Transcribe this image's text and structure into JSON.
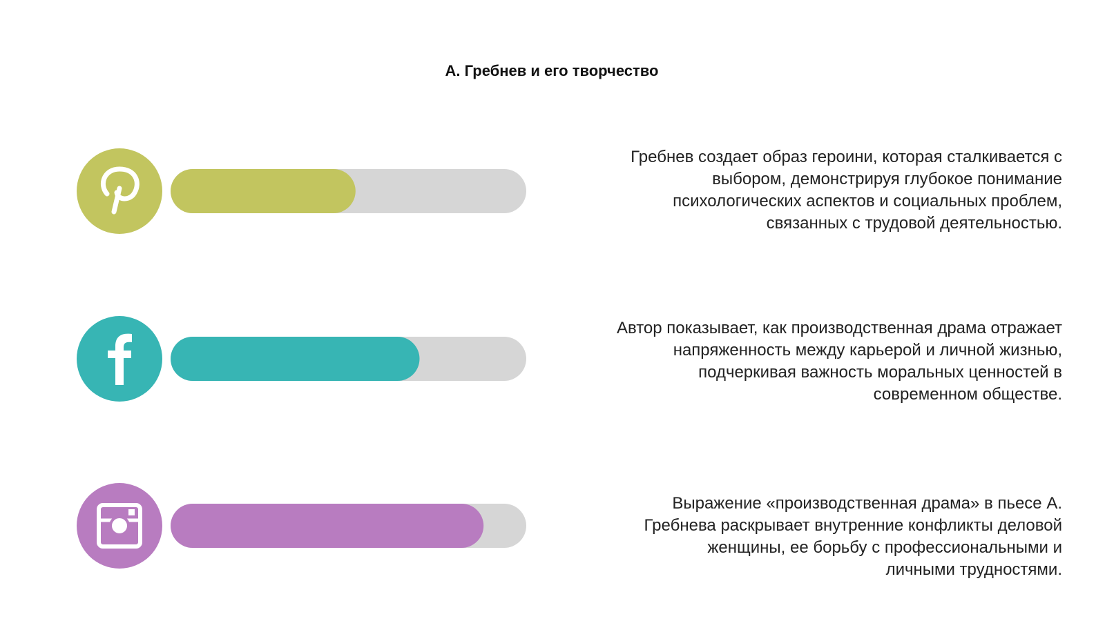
{
  "header": {
    "title": "А. Гребнев и его творчество"
  },
  "items": [
    {
      "icon": "pinterest",
      "color": "#c2c55f",
      "progress": 0.52,
      "lines": [
        "Гребнев создает образ героини, которая сталкивается с",
        "выбором, демонстрируя глубокое понимание",
        "психологических аспектов и социальных проблем,",
        "связанных с трудовой деятельностью."
      ]
    },
    {
      "icon": "facebook",
      "color": "#37b5b4",
      "progress": 0.7,
      "lines": [
        "Автор показывает, как производственная драма отражает",
        "напряженность между карьерой и личной жизнью,",
        "подчеркивая важность моральных ценностей в",
        "современном обществе."
      ]
    },
    {
      "icon": "instagram",
      "color": "#b87cc0",
      "progress": 0.88,
      "lines": [
        "Выражение «производственная драма» в пьесе А.",
        "Гребнева раскрывает внутренние конфликты деловой",
        "женщины, ее борьбу с профессиональными и",
        "личными трудностями."
      ]
    }
  ]
}
